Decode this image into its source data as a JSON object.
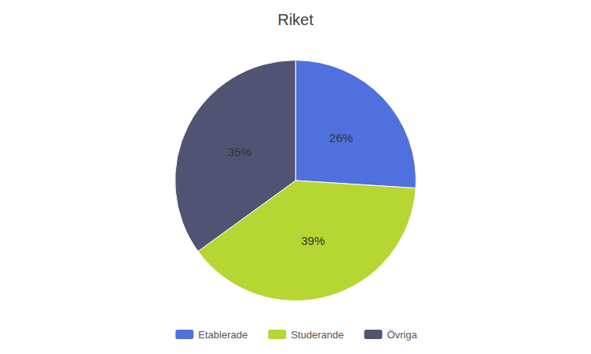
{
  "chart_data": {
    "type": "pie",
    "title": "Riket",
    "categories": [
      "Etablerade",
      "Studerande",
      "Övriga"
    ],
    "values": [
      26,
      39,
      35
    ],
    "value_labels": [
      "26%",
      "39%",
      "35%"
    ],
    "data_labels": true,
    "legend": "bottom"
  }
}
